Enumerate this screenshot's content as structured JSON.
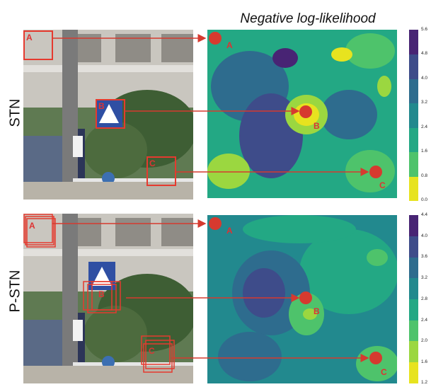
{
  "title": "Negative log-likelihood",
  "rows": [
    {
      "label": "STN",
      "points": [
        "A",
        "B",
        "C"
      ],
      "colorbar_ticks": [
        "0.0",
        "0.8",
        "1.6",
        "2.4",
        "3.2",
        "4.0",
        "4.8",
        "5.6"
      ]
    },
    {
      "label": "P-STN",
      "points": [
        "A",
        "B",
        "C"
      ],
      "colorbar_ticks": [
        "1.2",
        "1.6",
        "2.0",
        "2.4",
        "2.8",
        "3.2",
        "3.6",
        "4.0",
        "4.4"
      ]
    }
  ],
  "colors": {
    "arrow": "#d63a2f",
    "colormap": [
      "#e7e31f",
      "#9bd740",
      "#4ec36b",
      "#23a884",
      "#22898e",
      "#2e6c8e",
      "#3e4c8a",
      "#482474"
    ]
  }
}
